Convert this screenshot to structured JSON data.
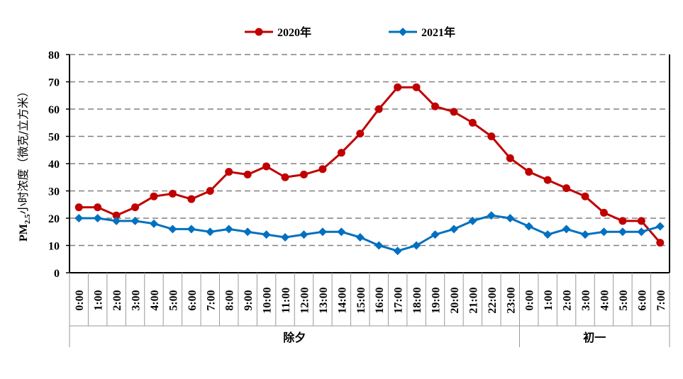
{
  "chart_data": {
    "type": "line",
    "title": "",
    "ylabel": {
      "main": "PM",
      "sub": "2.5",
      "rest": "小时浓度（微克/立方米）"
    },
    "ylim": [
      0,
      80
    ],
    "yticks": [
      "0",
      "10",
      "20",
      "30",
      "40",
      "50",
      "60",
      "70",
      "80"
    ],
    "grid": "horizontal dashed",
    "legend_position": "top-center",
    "categories": [
      "0:00",
      "1:00",
      "2:00",
      "3:00",
      "4:00",
      "5:00",
      "6:00",
      "7:00",
      "8:00",
      "9:00",
      "10:00",
      "11:00",
      "12:00",
      "13:00",
      "14:00",
      "15:00",
      "16:00",
      "17:00",
      "18:00",
      "19:00",
      "20:00",
      "21:00",
      "22:00",
      "23:00",
      "0:00",
      "1:00",
      "2:00",
      "3:00",
      "4:00",
      "5:00",
      "6:00",
      "7:00"
    ],
    "groups": [
      {
        "label": "除夕",
        "count": 24
      },
      {
        "label": "初一",
        "count": 8
      }
    ],
    "series": [
      {
        "name": "2020年",
        "color": "#C00000",
        "marker": "circle",
        "values": [
          24,
          24,
          21,
          24,
          28,
          29,
          27,
          30,
          37,
          36,
          39,
          35,
          36,
          38,
          44,
          51,
          60,
          68,
          68,
          61,
          59,
          55,
          50,
          42,
          37,
          34,
          31,
          28,
          22,
          19,
          19,
          11
        ]
      },
      {
        "name": "2021年",
        "color": "#0070C0",
        "marker": "diamond",
        "values": [
          20,
          20,
          19,
          19,
          18,
          16,
          16,
          15,
          16,
          15,
          14,
          13,
          14,
          15,
          15,
          13,
          10,
          8,
          10,
          14,
          16,
          19,
          21,
          20,
          17,
          14,
          16,
          14,
          15,
          15,
          15,
          17
        ]
      }
    ]
  }
}
